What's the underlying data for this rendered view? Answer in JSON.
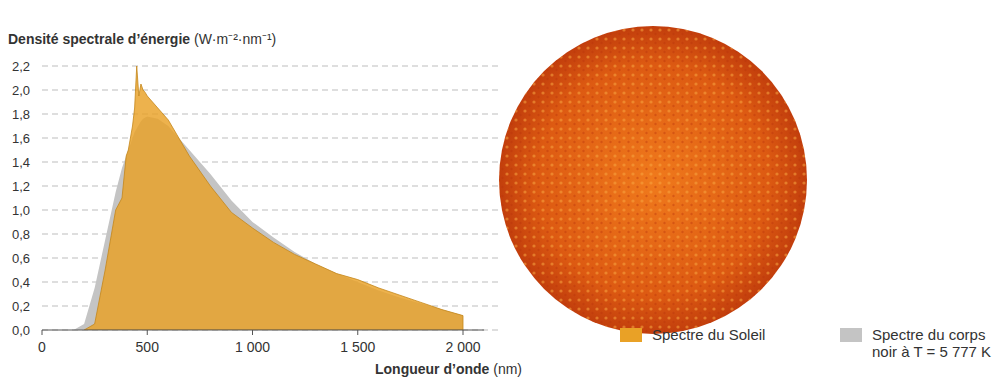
{
  "chart_data": {
    "type": "area",
    "y_label": "Densité spectrale d’énergie (W·m⁻²·nm⁻¹)",
    "x_label": "Longueur d’onde (nm)",
    "x": [
      150,
      200,
      250,
      300,
      350,
      380,
      400,
      410,
      420,
      430,
      440,
      450,
      460,
      470,
      480,
      490,
      500,
      550,
      600,
      650,
      700,
      800,
      900,
      1000,
      1100,
      1200,
      1300,
      1400,
      1500,
      1600,
      1700,
      1800,
      1900,
      2000
    ],
    "series": [
      {
        "name": "Spectre du corps noir à T = 5 777 K",
        "color": "#c4c4c4",
        "values": [
          0.0,
          0.05,
          0.35,
          0.75,
          1.15,
          1.35,
          1.45,
          1.5,
          1.55,
          1.6,
          1.65,
          1.68,
          1.71,
          1.74,
          1.76,
          1.77,
          1.78,
          1.76,
          1.7,
          1.6,
          1.5,
          1.3,
          1.08,
          0.9,
          0.77,
          0.65,
          0.55,
          0.47,
          0.4,
          0.33,
          0.27,
          0.22,
          0.17,
          0.12
        ]
      },
      {
        "name": "Spectre du Soleil",
        "color": "#e9a126",
        "values": [
          null,
          0.0,
          0.05,
          0.5,
          1.0,
          1.1,
          1.45,
          1.5,
          1.6,
          1.7,
          1.85,
          2.2,
          1.95,
          2.05,
          2.0,
          1.98,
          1.95,
          1.85,
          1.75,
          1.6,
          1.45,
          1.2,
          0.98,
          0.85,
          0.73,
          0.63,
          0.55,
          0.47,
          0.42,
          0.35,
          0.29,
          0.23,
          0.17,
          0.12
        ]
      }
    ],
    "xlim": [
      0,
      2100
    ],
    "ylim": [
      0,
      2.2
    ],
    "xticks": [
      0,
      500,
      {
        "value": 1000,
        "label": "1 000"
      },
      {
        "value": 1500,
        "label": "1 500"
      },
      {
        "value": 2000,
        "label": "2 000"
      }
    ],
    "yticks": [
      {
        "value": 0,
        "label": "0,0"
      },
      {
        "value": 0.2,
        "label": "0,2"
      },
      {
        "value": 0.4,
        "label": "0,4"
      },
      {
        "value": 0.6,
        "label": "0,6"
      },
      {
        "value": 0.8,
        "label": "0,8"
      },
      {
        "value": 1.0,
        "label": "1,0"
      },
      {
        "value": 1.2,
        "label": "1,2"
      },
      {
        "value": 1.4,
        "label": "1,4"
      },
      {
        "value": 1.6,
        "label": "1,6"
      },
      {
        "value": 1.8,
        "label": "1,8"
      },
      {
        "value": 2.0,
        "label": "2,0"
      },
      {
        "value": 2.2,
        "label": "2,2"
      }
    ],
    "grid": true,
    "legend": "bottom-right"
  }
}
